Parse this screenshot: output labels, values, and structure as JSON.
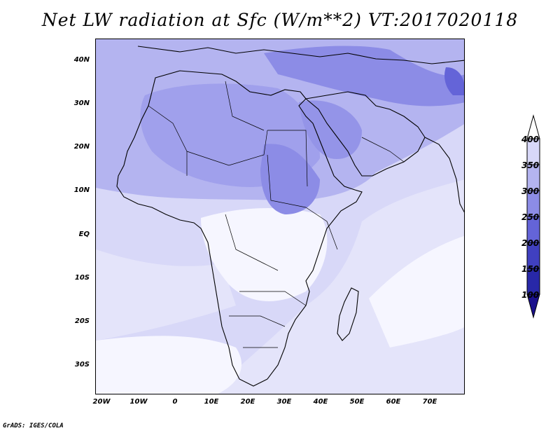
{
  "title": "Net LW radiation at Sfc (W/m**2) VT:2017020118",
  "credit": "GrADS: IGES/COLA",
  "map": {
    "lat_labels": [
      "40N",
      "30N",
      "20N",
      "10N",
      "EQ",
      "10S",
      "20S",
      "30S"
    ],
    "lon_labels": [
      "20W",
      "10W",
      "0",
      "10E",
      "20E",
      "30E",
      "40E",
      "50E",
      "60E",
      "70E"
    ],
    "shading_colors": {
      "gt_400": "#ffffff",
      "350_400": "#d8d8f8",
      "300_350": "#b4b4f0",
      "250_300": "#8c8ce6",
      "200_250": "#6464d8",
      "150_200": "#4040c0",
      "100_150": "#2828a8",
      "lt_100": "#1a108c"
    }
  },
  "colorbar": {
    "labels": [
      "400",
      "350",
      "300",
      "250",
      "200",
      "150",
      "100"
    ]
  }
}
